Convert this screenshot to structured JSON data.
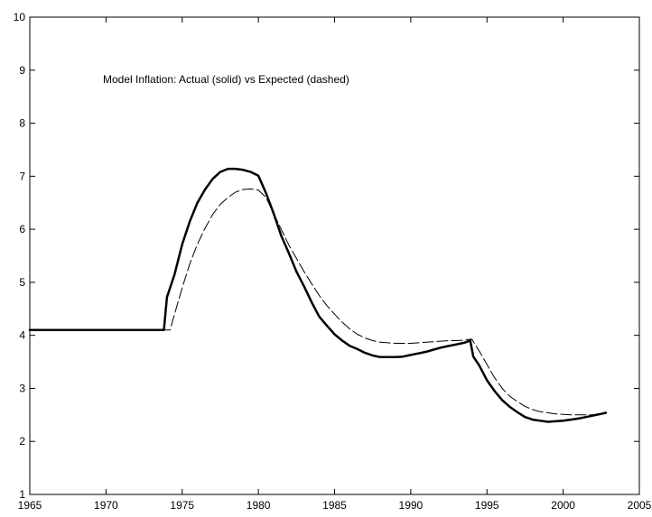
{
  "chart_data": {
    "type": "line",
    "title": "",
    "xlabel": "",
    "ylabel": "",
    "xlim": [
      1965,
      2005
    ],
    "ylim": [
      1,
      10
    ],
    "x_ticks": [
      1965,
      1970,
      1975,
      1980,
      1985,
      1990,
      1995,
      2000,
      2005
    ],
    "y_ticks": [
      1,
      2,
      3,
      4,
      5,
      6,
      7,
      8,
      9,
      10
    ],
    "x_tick_labels": [
      "1965",
      "1970",
      "1975",
      "1980",
      "1985",
      "1990",
      "1995",
      "2000",
      "2005"
    ],
    "y_tick_labels": [
      "1",
      "2",
      "3",
      "4",
      "5",
      "6",
      "7",
      "8",
      "9",
      "10"
    ],
    "grid": false,
    "annotation": "Model Inflation: Actual (solid) vs Expected (dashed)",
    "series": [
      {
        "style": "solid",
        "color": "#000000",
        "points": [
          [
            1965,
            4.1
          ],
          [
            1970,
            4.1
          ],
          [
            1973.8,
            4.1
          ],
          [
            1974.0,
            4.72
          ],
          [
            1974.5,
            5.15
          ],
          [
            1975,
            5.72
          ],
          [
            1975.5,
            6.15
          ],
          [
            1976,
            6.5
          ],
          [
            1976.5,
            6.75
          ],
          [
            1977,
            6.95
          ],
          [
            1977.5,
            7.08
          ],
          [
            1978,
            7.14
          ],
          [
            1978.5,
            7.14
          ],
          [
            1979,
            7.12
          ],
          [
            1979.5,
            7.08
          ],
          [
            1980,
            7.01
          ],
          [
            1980.5,
            6.68
          ],
          [
            1981,
            6.3
          ],
          [
            1981.5,
            5.88
          ],
          [
            1982,
            5.55
          ],
          [
            1982.5,
            5.2
          ],
          [
            1983,
            4.92
          ],
          [
            1983.5,
            4.62
          ],
          [
            1984,
            4.35
          ],
          [
            1984.5,
            4.18
          ],
          [
            1985,
            4.02
          ],
          [
            1985.5,
            3.9
          ],
          [
            1986,
            3.8
          ],
          [
            1986.5,
            3.74
          ],
          [
            1987,
            3.67
          ],
          [
            1987.5,
            3.62
          ],
          [
            1988,
            3.59
          ],
          [
            1988.5,
            3.59
          ],
          [
            1989,
            3.59
          ],
          [
            1989.5,
            3.6
          ],
          [
            1990,
            3.63
          ],
          [
            1990.5,
            3.66
          ],
          [
            1991,
            3.69
          ],
          [
            1991.5,
            3.73
          ],
          [
            1992,
            3.77
          ],
          [
            1992.5,
            3.8
          ],
          [
            1993,
            3.83
          ],
          [
            1993.5,
            3.86
          ],
          [
            1993.9,
            3.9
          ],
          [
            1994.1,
            3.6
          ],
          [
            1994.5,
            3.43
          ],
          [
            1995,
            3.15
          ],
          [
            1995.5,
            2.95
          ],
          [
            1996,
            2.78
          ],
          [
            1996.5,
            2.65
          ],
          [
            1997,
            2.55
          ],
          [
            1997.5,
            2.46
          ],
          [
            1998,
            2.41
          ],
          [
            1998.5,
            2.39
          ],
          [
            1999,
            2.37
          ],
          [
            1999.5,
            2.38
          ],
          [
            2000,
            2.39
          ],
          [
            2000.5,
            2.41
          ],
          [
            2001,
            2.43
          ],
          [
            2001.5,
            2.46
          ],
          [
            2002,
            2.49
          ],
          [
            2002.5,
            2.52
          ],
          [
            2002.8,
            2.54
          ]
        ]
      },
      {
        "style": "dashed",
        "color": "#000000",
        "points": [
          [
            1965,
            4.1
          ],
          [
            1970,
            4.1
          ],
          [
            1974.2,
            4.1
          ],
          [
            1974.5,
            4.4
          ],
          [
            1975,
            4.9
          ],
          [
            1975.5,
            5.35
          ],
          [
            1976,
            5.72
          ],
          [
            1976.5,
            6.02
          ],
          [
            1977,
            6.28
          ],
          [
            1977.5,
            6.47
          ],
          [
            1978,
            6.6
          ],
          [
            1978.5,
            6.7
          ],
          [
            1979,
            6.75
          ],
          [
            1979.5,
            6.76
          ],
          [
            1980,
            6.74
          ],
          [
            1980.5,
            6.6
          ],
          [
            1981,
            6.3
          ],
          [
            1981.5,
            6.0
          ],
          [
            1982,
            5.7
          ],
          [
            1982.5,
            5.45
          ],
          [
            1983,
            5.2
          ],
          [
            1983.5,
            4.97
          ],
          [
            1984,
            4.75
          ],
          [
            1984.5,
            4.56
          ],
          [
            1985,
            4.4
          ],
          [
            1985.5,
            4.25
          ],
          [
            1986,
            4.12
          ],
          [
            1986.5,
            4.02
          ],
          [
            1987,
            3.95
          ],
          [
            1987.5,
            3.9
          ],
          [
            1988,
            3.87
          ],
          [
            1988.5,
            3.86
          ],
          [
            1989,
            3.85
          ],
          [
            1989.5,
            3.85
          ],
          [
            1990,
            3.85
          ],
          [
            1990.5,
            3.86
          ],
          [
            1991,
            3.87
          ],
          [
            1991.5,
            3.88
          ],
          [
            1992,
            3.89
          ],
          [
            1992.5,
            3.9
          ],
          [
            1993,
            3.9
          ],
          [
            1993.5,
            3.91
          ],
          [
            1994,
            3.93
          ],
          [
            1994.5,
            3.7
          ],
          [
            1995,
            3.45
          ],
          [
            1995.5,
            3.2
          ],
          [
            1996,
            3.0
          ],
          [
            1996.5,
            2.85
          ],
          [
            1997,
            2.75
          ],
          [
            1997.5,
            2.66
          ],
          [
            1998,
            2.6
          ],
          [
            1998.5,
            2.56
          ],
          [
            1999,
            2.54
          ],
          [
            1999.5,
            2.52
          ],
          [
            2000,
            2.51
          ],
          [
            2000.5,
            2.5
          ],
          [
            2001,
            2.5
          ],
          [
            2001.5,
            2.5
          ],
          [
            2002,
            2.5
          ],
          [
            2002.5,
            2.52
          ],
          [
            2002.8,
            2.54
          ]
        ]
      }
    ]
  }
}
